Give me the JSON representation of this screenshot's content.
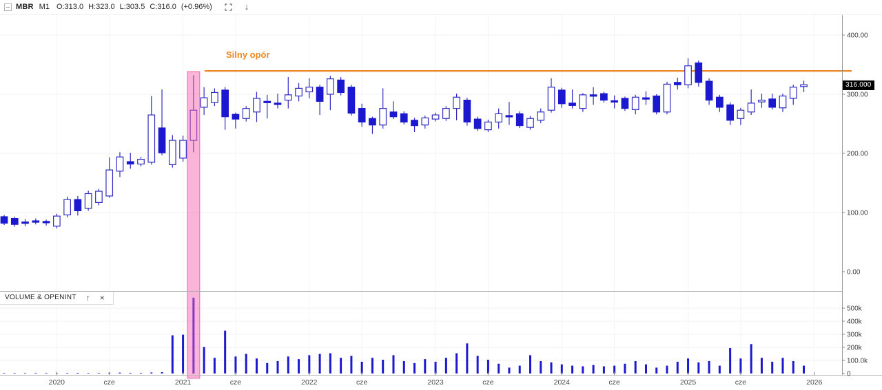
{
  "header": {
    "symbol": "MBR",
    "timeframe": "M1",
    "open_label": "O:313.0",
    "high_label": "H:323.0",
    "low_label": "L:303.5",
    "close_label": "C:316.0",
    "change_label": "(+0.96%)"
  },
  "annotation": {
    "text": "Silny opór",
    "color": "#ee8722",
    "level": 340
  },
  "price_axis": {
    "last_price_label": "316.000",
    "ticks": [
      {
        "label": "400.00",
        "value": 400
      },
      {
        "label": "300.00",
        "value": 300
      },
      {
        "label": "200.00",
        "value": 200
      },
      {
        "label": "100.00",
        "value": 100
      },
      {
        "label": "0.00",
        "value": 0
      }
    ]
  },
  "volume_panel": {
    "title": "VOLUME & OPENINT",
    "move_up_icon": "↑",
    "close_icon": "×",
    "ticks": [
      {
        "label": "500k",
        "value_k": 500
      },
      {
        "label": "400k",
        "value_k": 400
      },
      {
        "label": "300k",
        "value_k": 300
      },
      {
        "label": "200k",
        "value_k": 200
      },
      {
        "label": "100.0k",
        "value_k": 100
      },
      {
        "label": "0",
        "value_k": 0
      }
    ]
  },
  "x_axis": {
    "ticks": [
      {
        "label": "2020",
        "month": "2020-01"
      },
      {
        "label": "cze",
        "month": "2020-06"
      },
      {
        "label": "2021",
        "month": "2021-01"
      },
      {
        "label": "cze",
        "month": "2021-06"
      },
      {
        "label": "2022",
        "month": "2022-01"
      },
      {
        "label": "cze",
        "month": "2022-06"
      },
      {
        "label": "2023",
        "month": "2023-01"
      },
      {
        "label": "cze",
        "month": "2023-06"
      },
      {
        "label": "2024",
        "month": "2024-01"
      },
      {
        "label": "cze",
        "month": "2024-06"
      },
      {
        "label": "2025",
        "month": "2025-01"
      },
      {
        "label": "cze",
        "month": "2025-06"
      },
      {
        "label": "2026",
        "month": "2026-01"
      }
    ]
  },
  "chart_data": {
    "type": "candlestick_with_volume",
    "symbol": "MBR",
    "timeframe": "M1 (monthly)",
    "last_price": 316.0,
    "change_pct": 0.96,
    "resistance_level": 340,
    "resistance_label": "Silny opór",
    "highlight_band": {
      "month": "2021-02",
      "color": "#f462ae"
    },
    "price_axis_range": [
      0,
      434
    ],
    "volume_axis_range_k": [
      0,
      620
    ],
    "candle_fields": [
      "month",
      "open",
      "high",
      "low",
      "close",
      "volume_k"
    ],
    "candles": [
      [
        "2019-08",
        93,
        96,
        79,
        82,
        2
      ],
      [
        "2019-09",
        90,
        93,
        76,
        80,
        2
      ],
      [
        "2019-10",
        84,
        89,
        77,
        82,
        1.5
      ],
      [
        "2019-11",
        86,
        90,
        80,
        84,
        1.5
      ],
      [
        "2019-12",
        85,
        88,
        78,
        83,
        2
      ],
      [
        "2020-01",
        77,
        98,
        73,
        94,
        3
      ],
      [
        "2020-02",
        96,
        127,
        92,
        122,
        4
      ],
      [
        "2020-03",
        122,
        128,
        95,
        103,
        5
      ],
      [
        "2020-04",
        107,
        137,
        103,
        132,
        4
      ],
      [
        "2020-05",
        117,
        140,
        112,
        136,
        4
      ],
      [
        "2020-06",
        128,
        193,
        125,
        172,
        6
      ],
      [
        "2020-07",
        170,
        202,
        160,
        194,
        7
      ],
      [
        "2020-08",
        186,
        201,
        174,
        182,
        5
      ],
      [
        "2020-09",
        182,
        194,
        178,
        190,
        5
      ],
      [
        "2020-10",
        185,
        297,
        181,
        265,
        8
      ],
      [
        "2020-11",
        243,
        308,
        197,
        201,
        10
      ],
      [
        "2020-12",
        181,
        231,
        176,
        222,
        292
      ],
      [
        "2021-01",
        192,
        230,
        186,
        222,
        297
      ],
      [
        "2021-02",
        222,
        332,
        202,
        273,
        580
      ],
      [
        "2021-03",
        278,
        312,
        265,
        294,
        203
      ],
      [
        "2021-04",
        286,
        310,
        280,
        303,
        120
      ],
      [
        "2021-05",
        307,
        312,
        240,
        262,
        328
      ],
      [
        "2021-06",
        266,
        269,
        242,
        258,
        130
      ],
      [
        "2021-07",
        259,
        280,
        254,
        276,
        150
      ],
      [
        "2021-08",
        270,
        304,
        253,
        293,
        115
      ],
      [
        "2021-09",
        288,
        299,
        259,
        286,
        80
      ],
      [
        "2021-10",
        285,
        301,
        276,
        283,
        95
      ],
      [
        "2021-11",
        290,
        329,
        276,
        299,
        130
      ],
      [
        "2021-12",
        297,
        319,
        288,
        310,
        110
      ],
      [
        "2022-01",
        304,
        327,
        293,
        312,
        140
      ],
      [
        "2022-02",
        312,
        316,
        265,
        288,
        150
      ],
      [
        "2022-03",
        300,
        331,
        273,
        326,
        155
      ],
      [
        "2022-04",
        324,
        329,
        298,
        303,
        120
      ],
      [
        "2022-05",
        312,
        316,
        264,
        268,
        135
      ],
      [
        "2022-06",
        276,
        284,
        245,
        253,
        90
      ],
      [
        "2022-07",
        259,
        262,
        233,
        248,
        120
      ],
      [
        "2022-08",
        248,
        310,
        242,
        276,
        105
      ],
      [
        "2022-09",
        270,
        288,
        258,
        262,
        140
      ],
      [
        "2022-10",
        267,
        271,
        249,
        253,
        95
      ],
      [
        "2022-11",
        256,
        260,
        236,
        247,
        80
      ],
      [
        "2022-12",
        248,
        264,
        242,
        260,
        110
      ],
      [
        "2023-01",
        258,
        269,
        254,
        265,
        90
      ],
      [
        "2023-02",
        259,
        280,
        255,
        276,
        120
      ],
      [
        "2023-03",
        276,
        301,
        256,
        295,
        155
      ],
      [
        "2023-04",
        290,
        294,
        247,
        253,
        230
      ],
      [
        "2023-05",
        258,
        262,
        238,
        242,
        135
      ],
      [
        "2023-06",
        240,
        257,
        236,
        253,
        105
      ],
      [
        "2023-07",
        253,
        276,
        242,
        267,
        75
      ],
      [
        "2023-08",
        264,
        287,
        248,
        262,
        45
      ],
      [
        "2023-09",
        267,
        271,
        243,
        247,
        60
      ],
      [
        "2023-10",
        244,
        263,
        240,
        259,
        140
      ],
      [
        "2023-11",
        256,
        276,
        251,
        270,
        95
      ],
      [
        "2023-12",
        273,
        327,
        269,
        312,
        85
      ],
      [
        "2024-01",
        307,
        311,
        277,
        284,
        70
      ],
      [
        "2024-02",
        285,
        308,
        276,
        281,
        60
      ],
      [
        "2024-03",
        276,
        302,
        270,
        299,
        55
      ],
      [
        "2024-04",
        299,
        312,
        282,
        297,
        65
      ],
      [
        "2024-05",
        301,
        304,
        286,
        290,
        55
      ],
      [
        "2024-06",
        289,
        298,
        276,
        287,
        60
      ],
      [
        "2024-07",
        293,
        296,
        272,
        276,
        75
      ],
      [
        "2024-08",
        274,
        299,
        266,
        295,
        95
      ],
      [
        "2024-09",
        294,
        305,
        282,
        292,
        70
      ],
      [
        "2024-10",
        297,
        300,
        266,
        270,
        45
      ],
      [
        "2024-11",
        270,
        321,
        266,
        317,
        60
      ],
      [
        "2024-12",
        320,
        328,
        308,
        316,
        90
      ],
      [
        "2025-01",
        316,
        361,
        310,
        348,
        115
      ],
      [
        "2025-02",
        353,
        357,
        313,
        320,
        85
      ],
      [
        "2025-03",
        322,
        327,
        282,
        290,
        95
      ],
      [
        "2025-04",
        295,
        299,
        270,
        278,
        60
      ],
      [
        "2025-05",
        282,
        286,
        248,
        256,
        195
      ],
      [
        "2025-06",
        259,
        277,
        248,
        273,
        115
      ],
      [
        "2025-07",
        270,
        308,
        265,
        285,
        225
      ],
      [
        "2025-08",
        287,
        301,
        277,
        290,
        120
      ],
      [
        "2025-09",
        292,
        301,
        274,
        278,
        90
      ],
      [
        "2025-10",
        277,
        301,
        270,
        297,
        120
      ],
      [
        "2025-11",
        293,
        316,
        282,
        312,
        95
      ],
      [
        "2025-12",
        313,
        323,
        303.5,
        316,
        60
      ]
    ],
    "colors": {
      "bull_body": "#ffffff",
      "bull_border": "#2f2cc0",
      "bear_body": "#1b18cf",
      "wick": "#2f2cc0",
      "volume_bar": "#1b18cf",
      "resistance_line": "#ee8722",
      "highlight_band": "#f462ae",
      "last_price_badge_bg": "#000000",
      "grid": "#f0f0f0"
    }
  }
}
